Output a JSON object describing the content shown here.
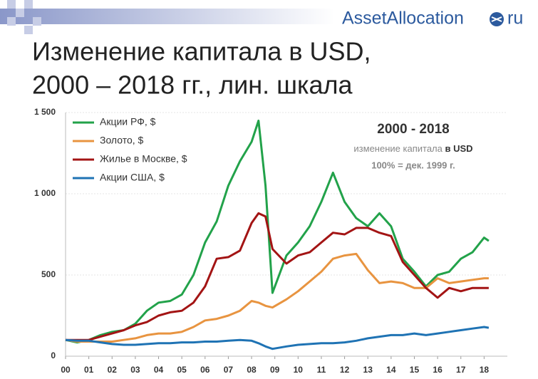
{
  "chart_data": {
    "type": "line",
    "title_lines": [
      "Изменение капитала в USD,",
      "2000 – 2018 гг., лин. шкала"
    ],
    "logo": {
      "text": "AssetAllocation",
      "suffix": "ru"
    },
    "annotation": {
      "heading": "2000 - 2018",
      "line1": "изменение капитала",
      "line1_bold": "в USD",
      "line2": "100% = дек. 1999 г."
    },
    "x": [
      0,
      0.5,
      1,
      1.5,
      2,
      2.5,
      3,
      3.5,
      4,
      4.5,
      5,
      5.5,
      6,
      6.5,
      7,
      7.5,
      8,
      8.3,
      8.6,
      8.9,
      9.5,
      10,
      10.5,
      11,
      11.5,
      12,
      12.5,
      13,
      13.5,
      14,
      14.5,
      15,
      15.5,
      16,
      16.5,
      17,
      17.5,
      18,
      18.2
    ],
    "series": [
      {
        "name": "Акции РФ, $",
        "color": "#22a24a",
        "values": [
          100,
          85,
          100,
          130,
          150,
          160,
          200,
          280,
          330,
          340,
          380,
          500,
          700,
          830,
          1050,
          1200,
          1320,
          1450,
          1050,
          390,
          620,
          700,
          800,
          950,
          1130,
          950,
          850,
          800,
          880,
          800,
          600,
          520,
          430,
          500,
          520,
          600,
          640,
          730,
          710
        ]
      },
      {
        "name": "Золото, $",
        "color": "#e89440",
        "values": [
          100,
          90,
          90,
          90,
          90,
          100,
          110,
          130,
          140,
          140,
          150,
          180,
          220,
          230,
          250,
          280,
          340,
          330,
          310,
          300,
          350,
          400,
          460,
          520,
          600,
          620,
          630,
          530,
          450,
          460,
          450,
          420,
          420,
          480,
          450,
          460,
          470,
          480,
          480
        ]
      },
      {
        "name": "Жилье в Москве, $",
        "color": "#a31414",
        "values": [
          100,
          100,
          100,
          120,
          140,
          160,
          190,
          210,
          250,
          270,
          280,
          330,
          430,
          600,
          610,
          650,
          820,
          880,
          860,
          660,
          570,
          620,
          640,
          700,
          760,
          750,
          790,
          790,
          760,
          740,
          580,
          500,
          420,
          360,
          420,
          400,
          420,
          420,
          420
        ]
      },
      {
        "name": "Акции США, $",
        "color": "#1f73b4",
        "values": [
          100,
          95,
          95,
          85,
          75,
          70,
          70,
          75,
          80,
          80,
          85,
          85,
          90,
          90,
          95,
          100,
          95,
          80,
          60,
          45,
          60,
          70,
          75,
          80,
          80,
          85,
          95,
          110,
          120,
          130,
          130,
          140,
          130,
          140,
          150,
          160,
          170,
          180,
          175
        ]
      }
    ],
    "xlim": [
      0,
      19
    ],
    "xticks": [
      {
        "value": 0,
        "label": "00"
      },
      {
        "value": 1,
        "label": "01"
      },
      {
        "value": 2,
        "label": "02"
      },
      {
        "value": 3,
        "label": "03"
      },
      {
        "value": 4,
        "label": "04"
      },
      {
        "value": 5,
        "label": "05"
      },
      {
        "value": 6,
        "label": "06"
      },
      {
        "value": 7,
        "label": "07"
      },
      {
        "value": 8,
        "label": "08"
      },
      {
        "value": 9,
        "label": "09"
      },
      {
        "value": 10,
        "label": "10"
      },
      {
        "value": 11,
        "label": "11"
      },
      {
        "value": 12,
        "label": "12"
      },
      {
        "value": 13,
        "label": "13"
      },
      {
        "value": 14,
        "label": "14"
      },
      {
        "value": 15,
        "label": "15"
      },
      {
        "value": 16,
        "label": "16"
      },
      {
        "value": 17,
        "label": "17"
      },
      {
        "value": 18,
        "label": "18"
      }
    ],
    "ylim": [
      0,
      1500
    ],
    "yticks": [
      0,
      500,
      {
        "value": 1000,
        "label": "1 000"
      },
      {
        "value": 1500,
        "label": "1 500"
      }
    ],
    "grid": true
  }
}
